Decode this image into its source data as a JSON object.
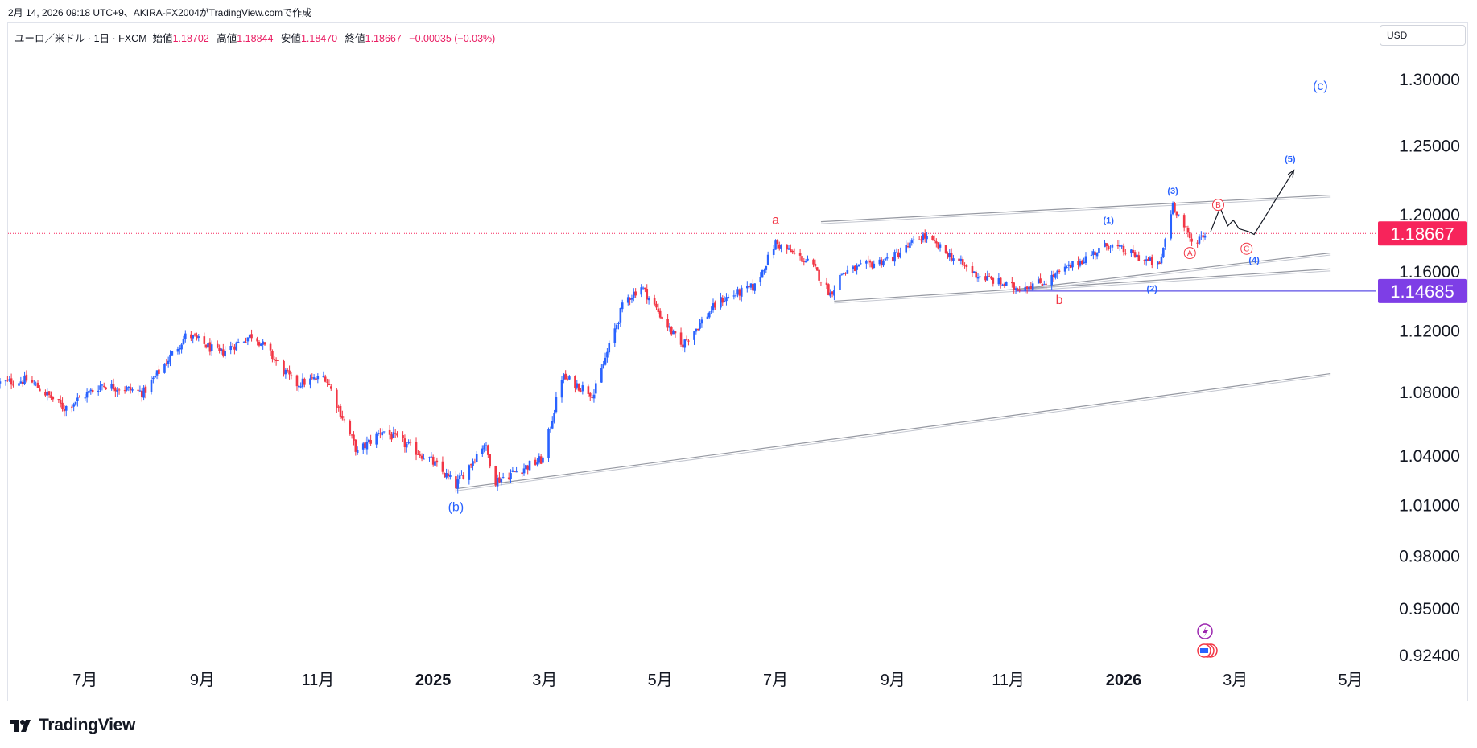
{
  "header": {
    "created_line": "2月 14, 2026 09:18 UTC+9、AKIRA-FX2004がTradingView.comで作成"
  },
  "legend": {
    "symbol": "ユーロ／米ドル · 1日 · FXCM",
    "open_label": "始値",
    "open_value": "1.18702",
    "high_label": "高値",
    "high_value": "1.18844",
    "low_label": "安値",
    "low_value": "1.18470",
    "close_label": "終値",
    "close_value": "1.18667",
    "change": "−0.00035 (−0.03%)"
  },
  "currency_selector": {
    "value": "USD"
  },
  "brand": {
    "name": "TradingView"
  },
  "colors": {
    "up": "#2962ff",
    "down": "#f23645",
    "wave_red": "#f23645",
    "wave_blue": "#2962ff",
    "price_badge": "#f7245b",
    "level_badge": "#7e3ee6",
    "trendline": "#9598a1"
  },
  "chart_data": {
    "type": "candlestick",
    "symbol": "EUR/USD",
    "timeframe": "1D",
    "y_scale": "log",
    "price_ticks": [
      "1.30000",
      "1.25000",
      "1.20000",
      "1.16000",
      "1.12000",
      "1.08000",
      "1.04000",
      "1.01000",
      "0.98000",
      "0.95000",
      "0.92400"
    ],
    "time_ticks": [
      {
        "label": "7月",
        "date": "2024-07"
      },
      {
        "label": "9月",
        "date": "2024-09"
      },
      {
        "label": "11月",
        "date": "2024-11"
      },
      {
        "label": "2025",
        "date": "2025-01",
        "bold": true
      },
      {
        "label": "3月",
        "date": "2025-03"
      },
      {
        "label": "5月",
        "date": "2025-05"
      },
      {
        "label": "7月",
        "date": "2025-07"
      },
      {
        "label": "9月",
        "date": "2025-09"
      },
      {
        "label": "11月",
        "date": "2025-11"
      },
      {
        "label": "2026",
        "date": "2026-01",
        "bold": true
      },
      {
        "label": "3月",
        "date": "2026-03"
      },
      {
        "label": "5月",
        "date": "2026-05"
      }
    ],
    "close_path": [
      {
        "date": "2024-05-17",
        "price": 1.086
      },
      {
        "date": "2024-06-01",
        "price": 1.088
      },
      {
        "date": "2024-06-20",
        "price": 1.07
      },
      {
        "date": "2024-07-10",
        "price": 1.085
      },
      {
        "date": "2024-08-01",
        "price": 1.08
      },
      {
        "date": "2024-08-24",
        "price": 1.118
      },
      {
        "date": "2024-09-10",
        "price": 1.105
      },
      {
        "date": "2024-09-28",
        "price": 1.118
      },
      {
        "date": "2024-10-20",
        "price": 1.085
      },
      {
        "date": "2024-11-05",
        "price": 1.09
      },
      {
        "date": "2024-11-22",
        "price": 1.042
      },
      {
        "date": "2024-12-05",
        "price": 1.056
      },
      {
        "date": "2024-12-30",
        "price": 1.038
      },
      {
        "date": "2025-01-13",
        "price": 1.022
      },
      {
        "date": "2025-01-28",
        "price": 1.048
      },
      {
        "date": "2025-02-03",
        "price": 1.025
      },
      {
        "date": "2025-02-28",
        "price": 1.038
      },
      {
        "date": "2025-03-10",
        "price": 1.09
      },
      {
        "date": "2025-03-27",
        "price": 1.079
      },
      {
        "date": "2025-04-12",
        "price": 1.14
      },
      {
        "date": "2025-04-21",
        "price": 1.15
      },
      {
        "date": "2025-05-12",
        "price": 1.11
      },
      {
        "date": "2025-06-01",
        "price": 1.14
      },
      {
        "date": "2025-06-20",
        "price": 1.15
      },
      {
        "date": "2025-07-01",
        "price": 1.18
      },
      {
        "date": "2025-07-20",
        "price": 1.165
      },
      {
        "date": "2025-07-30",
        "price": 1.145
      },
      {
        "date": "2025-08-05",
        "price": 1.159
      },
      {
        "date": "2025-09-01",
        "price": 1.17
      },
      {
        "date": "2025-09-17",
        "price": 1.185
      },
      {
        "date": "2025-10-15",
        "price": 1.158
      },
      {
        "date": "2025-11-04",
        "price": 1.149
      },
      {
        "date": "2025-11-20",
        "price": 1.153
      },
      {
        "date": "2025-12-24",
        "price": 1.179
      },
      {
        "date": "2026-01-20",
        "price": 1.164
      },
      {
        "date": "2026-01-27",
        "price": 1.208
      },
      {
        "date": "2026-02-06",
        "price": 1.18
      },
      {
        "date": "2026-02-13",
        "price": 1.1867
      }
    ],
    "current_price": {
      "value": "1.18667",
      "price": 1.18667
    },
    "horizontal_level": {
      "value": "1.14685",
      "price": 1.14685,
      "from_date": "2025-11-05"
    },
    "trendlines": [
      {
        "from": {
          "date": "2025-01-13",
          "price": 1.02
        },
        "to": {
          "date": "2026-04-20",
          "price": 1.092
        }
      },
      {
        "from": {
          "date": "2025-07-25",
          "price": 1.195
        },
        "to": {
          "date": "2026-04-20",
          "price": 1.214
        }
      },
      {
        "from": {
          "date": "2025-08-01",
          "price": 1.14
        },
        "to": {
          "date": "2026-04-20",
          "price": 1.162
        }
      },
      {
        "from": {
          "date": "2025-11-05",
          "price": 1.148
        },
        "to": {
          "date": "2026-04-20",
          "price": 1.173
        }
      }
    ],
    "projection": [
      {
        "date": "2026-02-16",
        "price": 1.188
      },
      {
        "date": "2026-02-21",
        "price": 1.205
      },
      {
        "date": "2026-02-25",
        "price": 1.192
      },
      {
        "date": "2026-02-28",
        "price": 1.196
      },
      {
        "date": "2026-03-03",
        "price": 1.19
      },
      {
        "date": "2026-03-08",
        "price": 1.188
      },
      {
        "date": "2026-03-11",
        "price": 1.186
      },
      {
        "date": "2026-04-01",
        "price": 1.232
      }
    ],
    "wave_labels": [
      {
        "text": "(c)",
        "color": "blue",
        "date": "2026-04-15",
        "price": 1.292,
        "size": 16
      },
      {
        "text": "(b)",
        "color": "blue",
        "date": "2025-01-13",
        "price": 1.0065,
        "size": 16
      },
      {
        "text": "a",
        "color": "red",
        "date": "2025-07-01",
        "price": 1.1935,
        "size": 16
      },
      {
        "text": "b",
        "color": "red",
        "date": "2025-11-28",
        "price": 1.138,
        "size": 16
      },
      {
        "text": "(1)",
        "color": "blue",
        "date": "2025-12-24",
        "price": 1.194,
        "size": 11
      },
      {
        "text": "(2)",
        "color": "blue",
        "date": "2026-01-16",
        "price": 1.1465,
        "size": 11
      },
      {
        "text": "(3)",
        "color": "blue",
        "date": "2026-01-27",
        "price": 1.215,
        "size": 11
      },
      {
        "text": "(4)",
        "color": "blue",
        "date": "2026-03-11",
        "price": 1.166,
        "size": 11
      },
      {
        "text": "(5)",
        "color": "blue",
        "date": "2026-03-30",
        "price": 1.238,
        "size": 11
      }
    ],
    "circled_labels": [
      {
        "text": "A",
        "color": "red",
        "date": "2026-02-05",
        "price": 1.173
      },
      {
        "text": "B",
        "color": "red",
        "date": "2026-02-20",
        "price": 1.207
      },
      {
        "text": "C",
        "color": "red",
        "date": "2026-03-07",
        "price": 1.176
      }
    ]
  }
}
